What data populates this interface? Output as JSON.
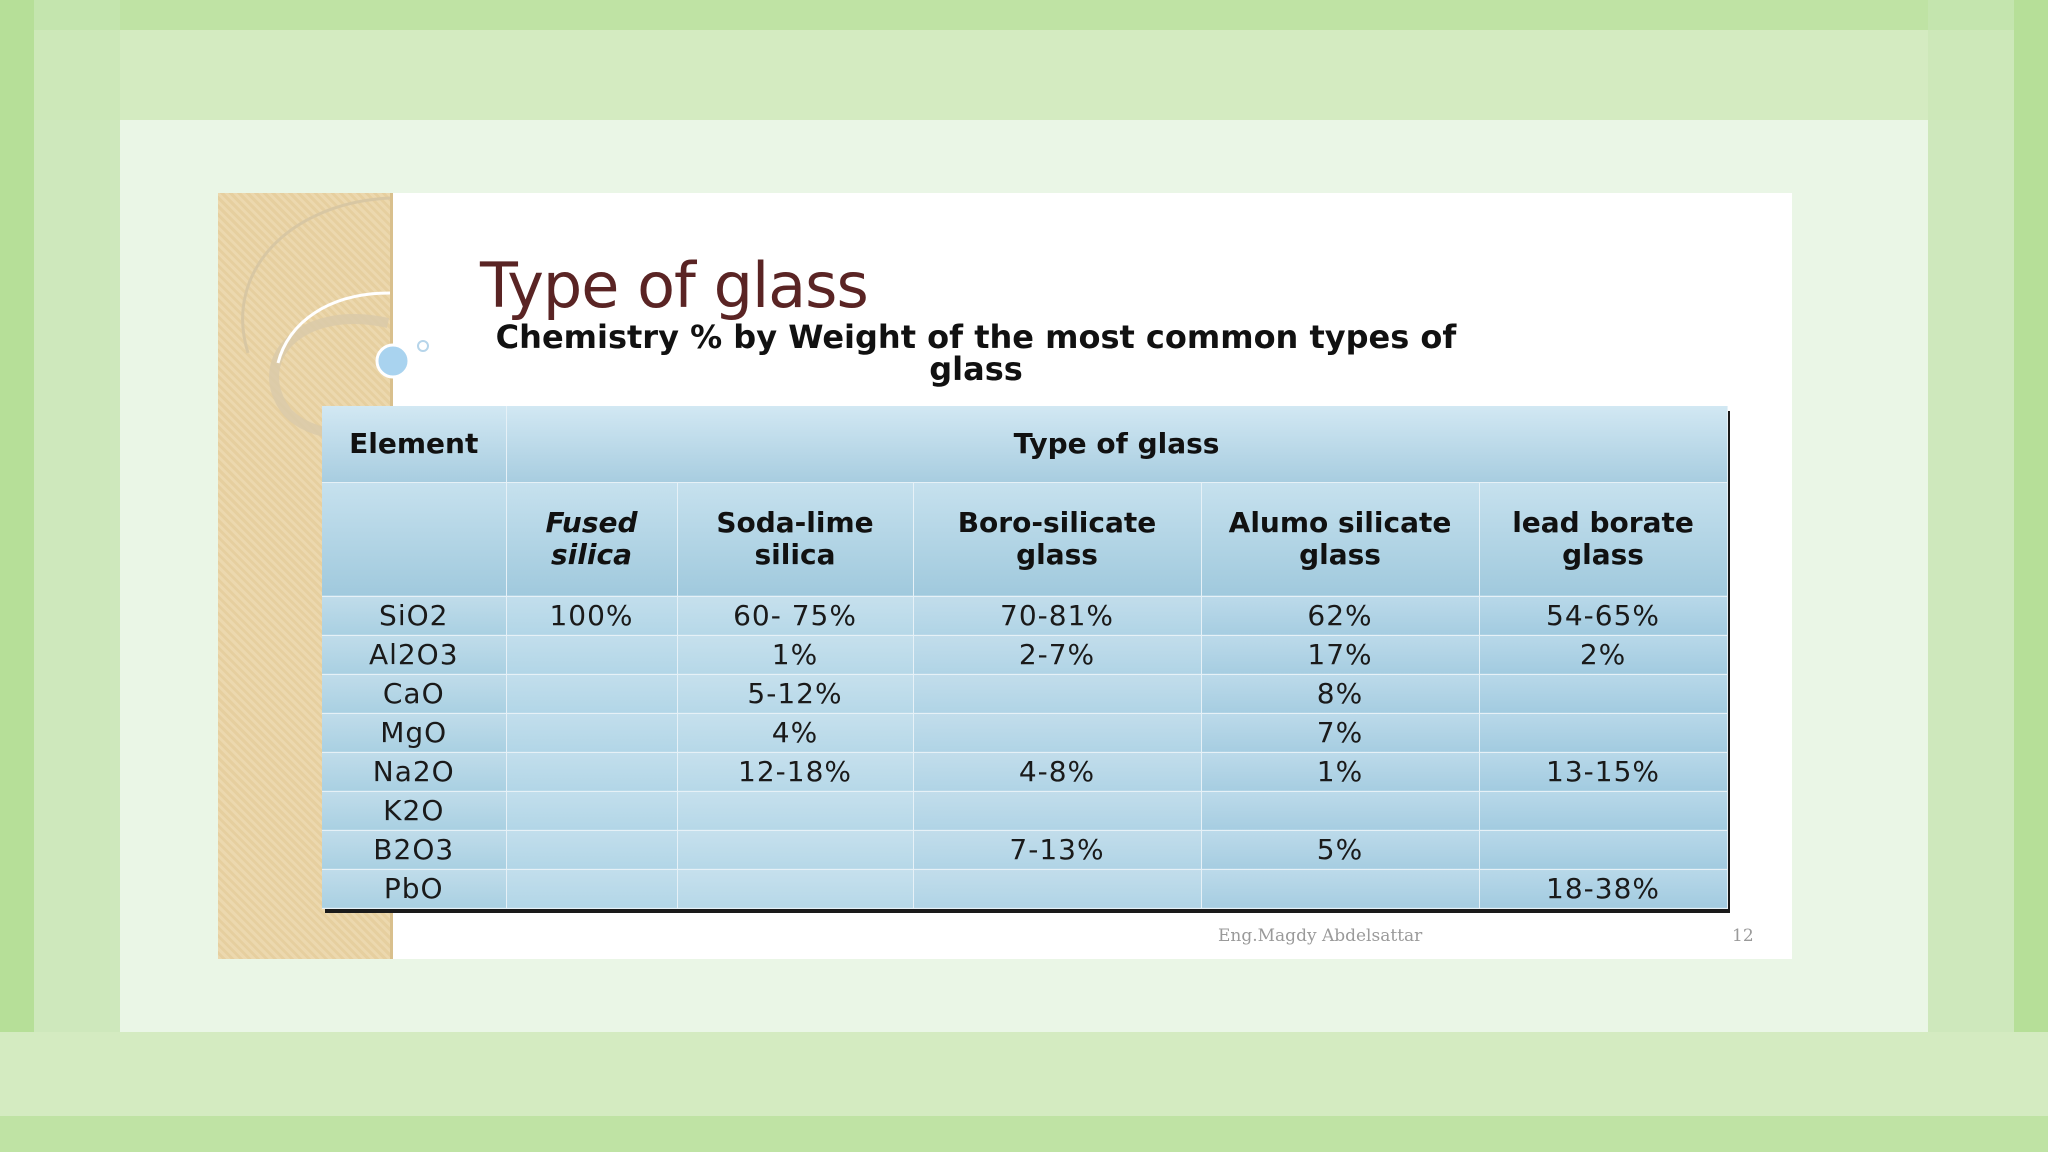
{
  "slide": {
    "title": "Type of glass",
    "subtitle": "Chemistry % by Weight of the most common types of glass",
    "footer_author": "Eng.Magdy Abdelsattar",
    "footer_page": "12"
  },
  "table": {
    "header_element": "Element",
    "header_type": "Type of glass",
    "columns": [
      "Fused silica",
      "Soda-lime silica",
      "Boro-silicate glass",
      "Alumo silicate glass",
      "lead borate glass"
    ],
    "rows": [
      {
        "element": "SiO2",
        "values": [
          "100%",
          "60- 75%",
          "70-81%",
          "62%",
          "54-65%"
        ]
      },
      {
        "element": "Al2O3",
        "values": [
          "",
          "1%",
          "2-7%",
          "17%",
          "2%"
        ]
      },
      {
        "element": "CaO",
        "values": [
          "",
          "5-12%",
          "",
          "8%",
          ""
        ]
      },
      {
        "element": "MgO",
        "values": [
          "",
          "4%",
          "",
          "7%",
          ""
        ]
      },
      {
        "element": "Na2O",
        "values": [
          "",
          "12-18%",
          "4-8%",
          "1%",
          "13-15%"
        ]
      },
      {
        "element": "K2O",
        "values": [
          "",
          "",
          "",
          "",
          ""
        ]
      },
      {
        "element": "B2O3",
        "values": [
          "",
          "",
          "7-13%",
          "5%",
          ""
        ]
      },
      {
        "element": "PbO",
        "values": [
          "",
          "",
          "",
          "",
          "18-38%"
        ]
      }
    ]
  }
}
